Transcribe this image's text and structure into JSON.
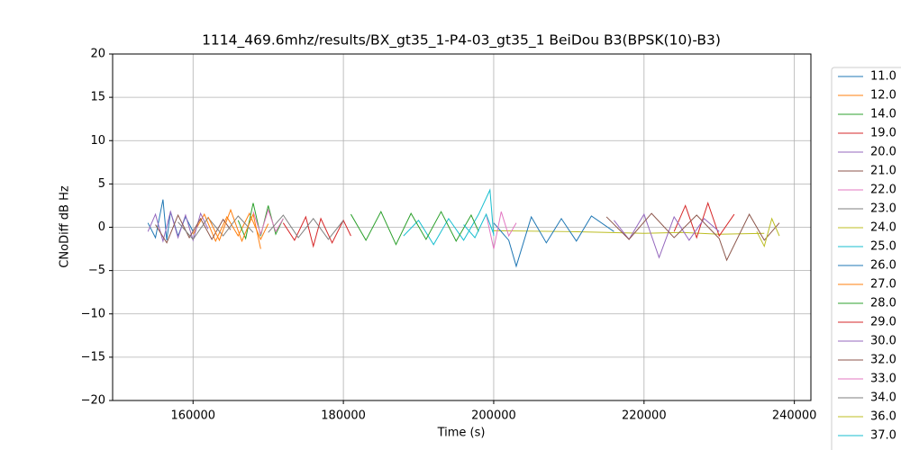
{
  "chart_data": {
    "type": "line",
    "title": "1114_469.6mhz/results/BX_gt35_1-P4-03_gt35_1 BeiDou B3(BPSK(10)-B3)",
    "x_label": "Time (s)",
    "y_label": "CNoDiff dB Hz",
    "xlim": [
      149300,
      242200
    ],
    "ylim": [
      -20,
      20
    ],
    "xticks": [
      160000,
      180000,
      200000,
      220000,
      240000
    ],
    "yticks": [
      {
        "value": -20,
        "label": "−20"
      },
      {
        "value": -15,
        "label": "−15"
      },
      {
        "value": -10,
        "label": "−10"
      },
      {
        "value": -5,
        "label": "−5"
      },
      0,
      5,
      10,
      15,
      20
    ],
    "grid": true,
    "series": [
      {
        "name": "11.0",
        "color": "#1f77b4",
        "x": [
          154000,
          155000,
          156000,
          156500,
          157000,
          158000,
          159000,
          160000
        ],
        "values": [
          0.5,
          -1.2,
          3.2,
          -1.5,
          1.8,
          -1.0,
          1.2,
          -0.5
        ]
      },
      {
        "name": "12.0",
        "color": "#ff7f0e",
        "x": [
          160000,
          161500,
          163000,
          164500,
          166000,
          167500,
          169000,
          170000
        ],
        "values": [
          -0.8,
          1.5,
          -1.6,
          1.2,
          -1.0,
          1.6,
          -1.4,
          0.4
        ]
      },
      {
        "name": "14.0",
        "color": "#2ca02c",
        "x": [
          166000,
          167000,
          168000,
          169000,
          170000,
          171000,
          172000
        ],
        "values": [
          0.8,
          -1.3,
          2.8,
          -1.0,
          2.5,
          -0.8,
          1.0
        ]
      },
      {
        "name": "19.0",
        "color": "#d62728",
        "x": [
          172000,
          173500,
          175000,
          176000,
          177000,
          178500,
          180000,
          181000
        ],
        "values": [
          0.5,
          -1.5,
          1.2,
          -2.2,
          1.0,
          -1.8,
          0.8,
          -1.0
        ]
      },
      {
        "name": "20.0",
        "color": "#9467bd",
        "x": [
          154000,
          155000,
          156000,
          157000,
          158000,
          159000,
          160000,
          161000,
          162000
        ],
        "values": [
          -0.5,
          1.5,
          -1.6,
          1.8,
          -1.2,
          1.4,
          -1.5,
          1.6,
          -0.2
        ]
      },
      {
        "name": "21.0",
        "color": "#8c564b",
        "x": [
          155000,
          156500,
          158000,
          159500,
          161000,
          162500,
          164000,
          165000
        ],
        "values": [
          0.3,
          -1.8,
          1.4,
          -1.2,
          1.0,
          -1.4,
          0.9,
          -0.3
        ]
      },
      {
        "name": "22.0",
        "color": "#e377c2",
        "x": [
          168000,
          169000,
          170000,
          171000,
          172000
        ],
        "values": [
          1.8,
          -0.8,
          2.0,
          -0.5,
          1.0
        ]
      },
      {
        "name": "23.0",
        "color": "#7f7f7f",
        "x": [
          158000,
          160000,
          162000,
          164000,
          166000,
          168000
        ],
        "values": [
          0.6,
          -1.4,
          1.1,
          -1.0,
          1.3,
          -0.6
        ]
      },
      {
        "name": "24.0",
        "color": "#bcbd22",
        "x": [
          200000,
          210000,
          215000,
          220000,
          225000,
          230000,
          236000
        ],
        "values": [
          -0.4,
          -0.5,
          -0.6,
          -0.7,
          -0.6,
          -0.8,
          -0.7
        ]
      },
      {
        "name": "25.0",
        "color": "#17becf",
        "x": [
          188000,
          190000,
          192000,
          194000,
          196000,
          198000,
          199500,
          200000
        ],
        "values": [
          -1.0,
          0.8,
          -2.0,
          1.0,
          -1.5,
          1.5,
          4.3,
          -1.0
        ]
      },
      {
        "name": "26.0",
        "color": "#1f77b4",
        "x": [
          200000,
          202000,
          203000,
          205000,
          207000,
          209000,
          211000,
          213000,
          216000
        ],
        "values": [
          0.5,
          -1.5,
          -4.5,
          1.2,
          -1.8,
          1.0,
          -1.6,
          1.3,
          -0.5
        ]
      },
      {
        "name": "27.0",
        "color": "#ff7f0e",
        "x": [
          162000,
          163500,
          165000,
          166500,
          168000,
          169000
        ],
        "values": [
          1.2,
          -1.5,
          2.0,
          -1.6,
          1.5,
          -2.5
        ]
      },
      {
        "name": "28.0",
        "color": "#2ca02c",
        "x": [
          181000,
          183000,
          185000,
          187000,
          189000,
          191000,
          193000,
          195000,
          197000,
          198000
        ],
        "values": [
          1.5,
          -1.5,
          1.8,
          -2.0,
          1.6,
          -1.4,
          1.8,
          -1.6,
          1.4,
          -0.5
        ]
      },
      {
        "name": "29.0",
        "color": "#d62728",
        "x": [
          224000,
          225500,
          227000,
          228500,
          230000,
          232000
        ],
        "values": [
          -0.5,
          2.5,
          -1.2,
          2.8,
          -1.0,
          1.5
        ]
      },
      {
        "name": "30.0",
        "color": "#9467bd",
        "x": [
          216000,
          218000,
          220000,
          222000,
          224000,
          226000,
          228000,
          230000
        ],
        "values": [
          0.8,
          -1.4,
          1.5,
          -3.5,
          1.2,
          -1.5,
          1.0,
          -0.5
        ]
      },
      {
        "name": "32.0",
        "color": "#8c564b",
        "x": [
          215000,
          218000,
          221000,
          224000,
          227000,
          230000,
          231000,
          234000,
          236000,
          238000
        ],
        "values": [
          1.2,
          -1.4,
          1.6,
          -1.2,
          1.4,
          -1.3,
          -3.8,
          1.5,
          -1.5,
          0.5
        ]
      },
      {
        "name": "33.0",
        "color": "#e377c2",
        "x": [
          199000,
          200000,
          201000,
          202000,
          203000
        ],
        "values": [
          1.5,
          -2.5,
          1.8,
          -1.0,
          0.5
        ]
      },
      {
        "name": "34.0",
        "color": "#7f7f7f",
        "x": [
          170000,
          172000,
          174000,
          176000,
          178000,
          180000
        ],
        "values": [
          -0.6,
          1.4,
          -1.2,
          1.0,
          -1.4,
          0.8
        ]
      },
      {
        "name": "36.0",
        "color": "#bcbd22",
        "x": [
          235000,
          236000,
          237000,
          238000
        ],
        "values": [
          -0.5,
          -2.2,
          1.0,
          -1.0
        ]
      },
      {
        "name": "37.0",
        "color": "#17becf",
        "x": [
          196000,
          197500,
          199000,
          200000
        ],
        "values": [
          0.3,
          -1.2,
          1.5,
          -0.8
        ]
      }
    ]
  }
}
